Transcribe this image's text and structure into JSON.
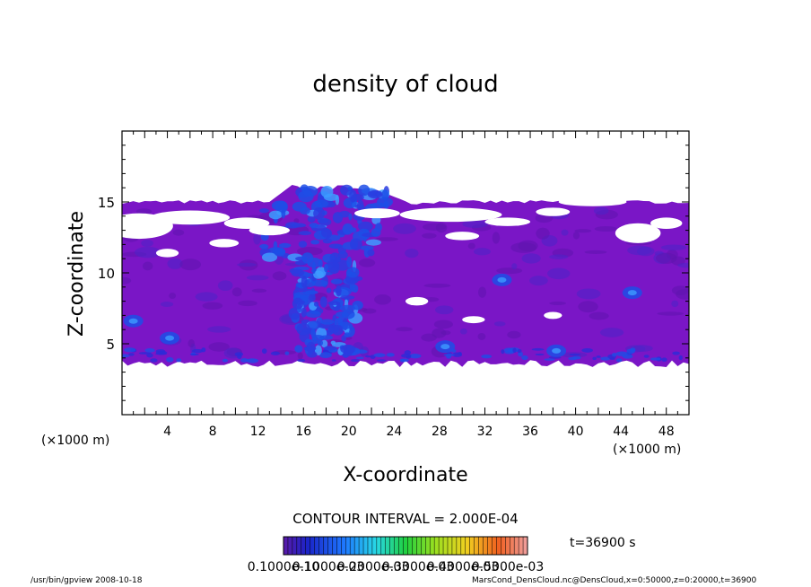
{
  "chart_data": {
    "type": "heatmap",
    "title": "density of cloud",
    "xlabel": "X-coordinate",
    "ylabel": "Z-coordinate",
    "x_unit": "(×1000 m)",
    "xlim": [
      0,
      50
    ],
    "ylim": [
      0,
      20
    ],
    "x_ticks": [
      4,
      8,
      12,
      16,
      20,
      24,
      28,
      32,
      36,
      40,
      44,
      48
    ],
    "y_ticks": [
      5,
      10,
      15
    ],
    "contour_interval_label": "CONTOUR INTERVAL = 2.000E-04",
    "time_label": "t=36900 s",
    "colorbar_labels": [
      "0.1000e-10",
      "0.1000e-03",
      "0.2000e-03",
      "0.3000e-03",
      "0.4000e-03",
      "0.5000e-03"
    ],
    "cloud_base_z": 3.6,
    "cloud_top_z": 15.0,
    "plume_top_z": 16.2,
    "plume_x_range": [
      13,
      24
    ],
    "dominant_level_color": "#7a16c6",
    "colors": {
      "fill": "#7a16c6",
      "fill_dark": "#5e14ae",
      "blue": "#1d4de6",
      "light_blue": "#3d9bff"
    }
  },
  "footer": {
    "left": "/usr/bin/gpview   2008-10-18",
    "right": "MarsCond_DensCloud.nc@DensCloud,x=0:50000,z=0:20000,t=36900"
  }
}
